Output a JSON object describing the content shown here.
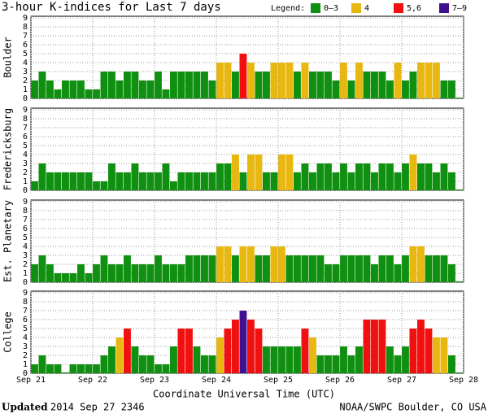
{
  "title": "3-hour K-indices for Last 7 days",
  "legend_title": "Legend:",
  "legend": [
    {
      "label": "0–3",
      "min": 0,
      "max": 3,
      "color": "#109010"
    },
    {
      "label": "4",
      "min": 4,
      "max": 4,
      "color": "#e8b810"
    },
    {
      "label": "5,6",
      "min": 5,
      "max": 6,
      "color": "#f01010"
    },
    {
      "label": "7–9",
      "min": 7,
      "max": 9,
      "color": "#401090"
    }
  ],
  "x_labels": [
    "Sep 21",
    "Sep 22",
    "Sep 23",
    "Sep 24",
    "Sep 25",
    "Sep 26",
    "Sep 27",
    "Sep 28"
  ],
  "x_label": "Coordinate Universal Time (UTC)",
  "footer": {
    "updated_word": "Updated",
    "updated_time": "2014 Sep 27 2346",
    "source": "NOAA/SWPC Boulder, CO USA"
  },
  "chart_data": [
    {
      "type": "bar",
      "ylabel": "Boulder",
      "ylim": [
        0,
        9
      ],
      "yticks": [
        0,
        1,
        2,
        3,
        4,
        5,
        6,
        7,
        8,
        9
      ],
      "values": [
        2,
        3,
        2,
        1,
        2,
        2,
        2,
        1,
        1,
        3,
        3,
        2,
        3,
        3,
        2,
        2,
        3,
        1,
        3,
        3,
        3,
        3,
        3,
        2,
        4,
        4,
        3,
        5,
        4,
        3,
        3,
        4,
        4,
        4,
        3,
        4,
        3,
        3,
        3,
        2,
        4,
        2,
        4,
        3,
        3,
        3,
        2,
        4,
        2,
        3,
        4,
        4,
        4,
        2,
        2,
        0
      ]
    },
    {
      "type": "bar",
      "ylabel": "Fredericksburg",
      "ylim": [
        0,
        9
      ],
      "yticks": [
        0,
        1,
        2,
        3,
        4,
        5,
        6,
        7,
        8,
        9
      ],
      "values": [
        1,
        3,
        2,
        2,
        2,
        2,
        2,
        2,
        1,
        1,
        3,
        2,
        2,
        3,
        2,
        2,
        2,
        3,
        1,
        2,
        2,
        2,
        2,
        2,
        3,
        3,
        4,
        2,
        4,
        4,
        2,
        2,
        4,
        4,
        2,
        3,
        2,
        3,
        3,
        2,
        3,
        2,
        3,
        3,
        2,
        3,
        3,
        2,
        3,
        4,
        3,
        3,
        2,
        3,
        2,
        0
      ]
    },
    {
      "type": "bar",
      "ylabel": "Est. Planetary",
      "ylim": [
        0,
        9
      ],
      "yticks": [
        0,
        1,
        2,
        3,
        4,
        5,
        6,
        7,
        8,
        9
      ],
      "values": [
        2,
        3,
        2,
        1,
        1,
        1,
        2,
        1,
        2,
        3,
        2,
        2,
        3,
        2,
        2,
        2,
        3,
        2,
        2,
        2,
        3,
        3,
        3,
        3,
        4,
        4,
        3,
        4,
        4,
        3,
        3,
        4,
        4,
        3,
        3,
        3,
        3,
        3,
        2,
        2,
        3,
        3,
        3,
        3,
        2,
        3,
        3,
        2,
        3,
        4,
        4,
        3,
        3,
        3,
        2,
        0
      ]
    },
    {
      "type": "bar",
      "ylabel": "College",
      "ylim": [
        0,
        9
      ],
      "yticks": [
        0,
        1,
        2,
        3,
        4,
        5,
        6,
        7,
        8,
        9
      ],
      "values": [
        1,
        2,
        1,
        1,
        0,
        1,
        1,
        1,
        1,
        2,
        3,
        4,
        5,
        3,
        2,
        2,
        1,
        1,
        3,
        5,
        5,
        3,
        2,
        2,
        4,
        5,
        6,
        7,
        6,
        5,
        3,
        3,
        3,
        3,
        3,
        5,
        4,
        2,
        2,
        2,
        3,
        2,
        3,
        6,
        6,
        6,
        3,
        2,
        3,
        5,
        6,
        5,
        4,
        4,
        2,
        0
      ]
    }
  ]
}
